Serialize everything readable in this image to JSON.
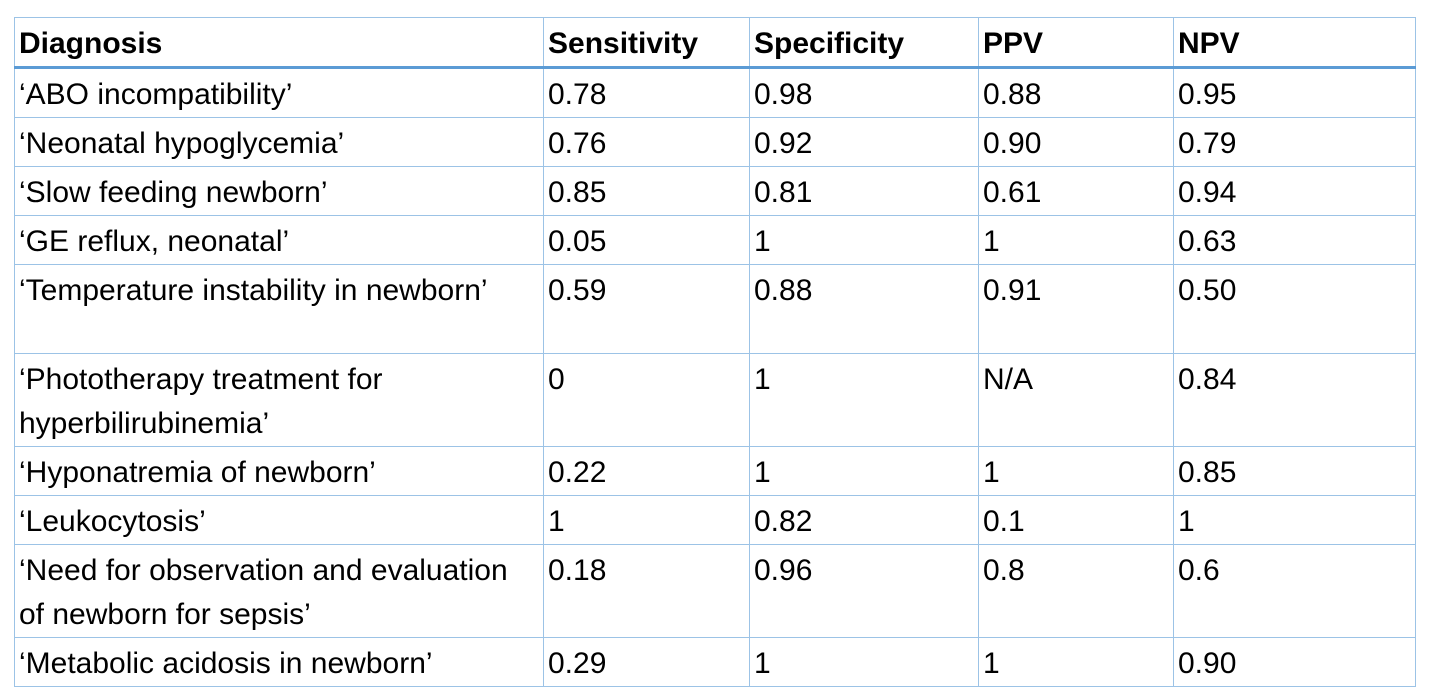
{
  "table": {
    "columns": [
      "Diagnosis",
      "Sensitivity",
      "Specificity",
      "PPV",
      "NPV"
    ],
    "rows": [
      {
        "diagnosis": "‘ABO incompatibility’",
        "sensitivity": "0.78",
        "specificity": "0.98",
        "ppv": "0.88",
        "npv": "0.95"
      },
      {
        "diagnosis": "‘Neonatal hypoglycemia’",
        "sensitivity": "0.76",
        "specificity": "0.92",
        "ppv": "0.90",
        "npv": "0.79"
      },
      {
        "diagnosis": "‘Slow feeding newborn’",
        "sensitivity": "0.85",
        "specificity": "0.81",
        "ppv": "0.61",
        "npv": "0.94"
      },
      {
        "diagnosis": "‘GE reflux, neonatal’",
        "sensitivity": "0.05",
        "specificity": "1",
        "ppv": "1",
        "npv": "0.63"
      },
      {
        "diagnosis": "‘Temperature instability in newborn’",
        "sensitivity": "0.59",
        "specificity": "0.88",
        "ppv": "0.91",
        "npv": "0.50"
      },
      {
        "diagnosis": "‘Phototherapy treatment for hyperbilirubinemia’",
        "sensitivity": "0",
        "specificity": "1",
        "ppv": "N/A",
        "npv": "0.84"
      },
      {
        "diagnosis": "‘Hyponatremia of newborn’",
        "sensitivity": "0.22",
        "specificity": "1",
        "ppv": "1",
        "npv": "0.85"
      },
      {
        "diagnosis": "‘Leukocytosis’",
        "sensitivity": "1",
        "specificity": "0.82",
        "ppv": "0.1",
        "npv": "1"
      },
      {
        "diagnosis": "‘Need for observation and evaluation of newborn for sepsis’",
        "sensitivity": "0.18",
        "specificity": "0.96",
        "ppv": "0.8",
        "npv": "0.6"
      },
      {
        "diagnosis": "‘Metabolic acidosis in newborn’",
        "sensitivity": "0.29",
        "specificity": "1",
        "ppv": "1",
        "npv": "0.90"
      }
    ]
  },
  "colors": {
    "border": "#9cc3e6",
    "header_rule": "#5b9bd5",
    "text": "#000000",
    "background": "#ffffff"
  }
}
